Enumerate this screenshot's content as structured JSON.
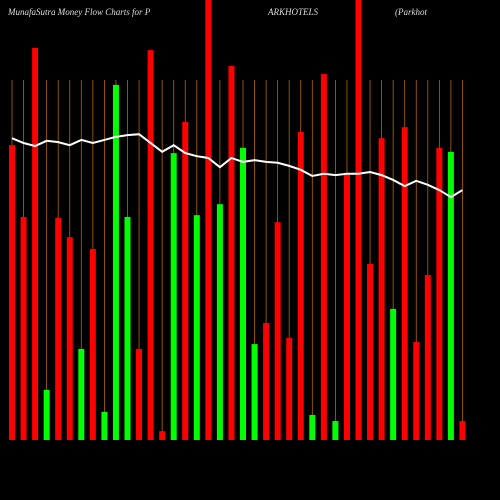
{
  "chart_data": {
    "type": "bar",
    "title_parts": [
      "MunafaSutra  Money  Flow  Charts for P",
      "ARKHOTELS",
      "(Parkhot"
    ],
    "values": [
      67.0,
      50.7,
      89.1,
      11.4,
      50.5,
      46.1,
      20.7,
      43.4,
      6.4,
      80.7,
      50.7,
      20.7,
      88.6,
      2.0,
      65.2,
      72.3,
      51.1,
      100,
      53.6,
      85.0,
      66.4,
      21.8,
      26.6,
      49.5,
      23.2,
      70.0,
      5.7,
      83.2,
      4.3,
      60.5,
      100,
      40.0,
      68.6,
      29.8,
      71.1,
      22.3,
      37.5,
      66.4,
      65.5,
      4.3
    ],
    "colors": [
      "#ff0000",
      "#ff0000",
      "#ff0000",
      "#00ff00",
      "#ff0000",
      "#ff0000",
      "#00ff00",
      "#ff0000",
      "#00ff00",
      "#00ff00",
      "#00ff00",
      "#ff0000",
      "#ff0000",
      "#ff0000",
      "#00ff00",
      "#ff0000",
      "#00ff00",
      "#ff0000",
      "#00ff00",
      "#ff0000",
      "#00ff00",
      "#00ff00",
      "#ff0000",
      "#ff0000",
      "#ff0000",
      "#ff0000",
      "#00ff00",
      "#ff0000",
      "#00ff00",
      "#ff0000",
      "#ff0000",
      "#ff0000",
      "#ff0000",
      "#00ff00",
      "#ff0000",
      "#ff0000",
      "#ff0000",
      "#ff0000",
      "#00ff00",
      "#ff0000"
    ],
    "line_values": [
      68.6,
      67.5,
      66.8,
      68.0,
      67.7,
      67.0,
      68.2,
      67.5,
      68.2,
      68.9,
      69.3,
      69.5,
      67.5,
      65.5,
      67.0,
      65.2,
      64.5,
      64.1,
      62.0,
      64.1,
      63.2,
      63.6,
      63.2,
      63.0,
      62.3,
      61.4,
      60.0,
      60.5,
      60.2,
      60.5,
      60.5,
      60.9,
      60.2,
      59.1,
      57.7,
      58.9,
      58.0,
      56.8,
      55.2,
      56.8
    ],
    "line_color": "#ffffff",
    "grid_color": "#b5650d",
    "ylim": [
      0,
      100
    ]
  }
}
